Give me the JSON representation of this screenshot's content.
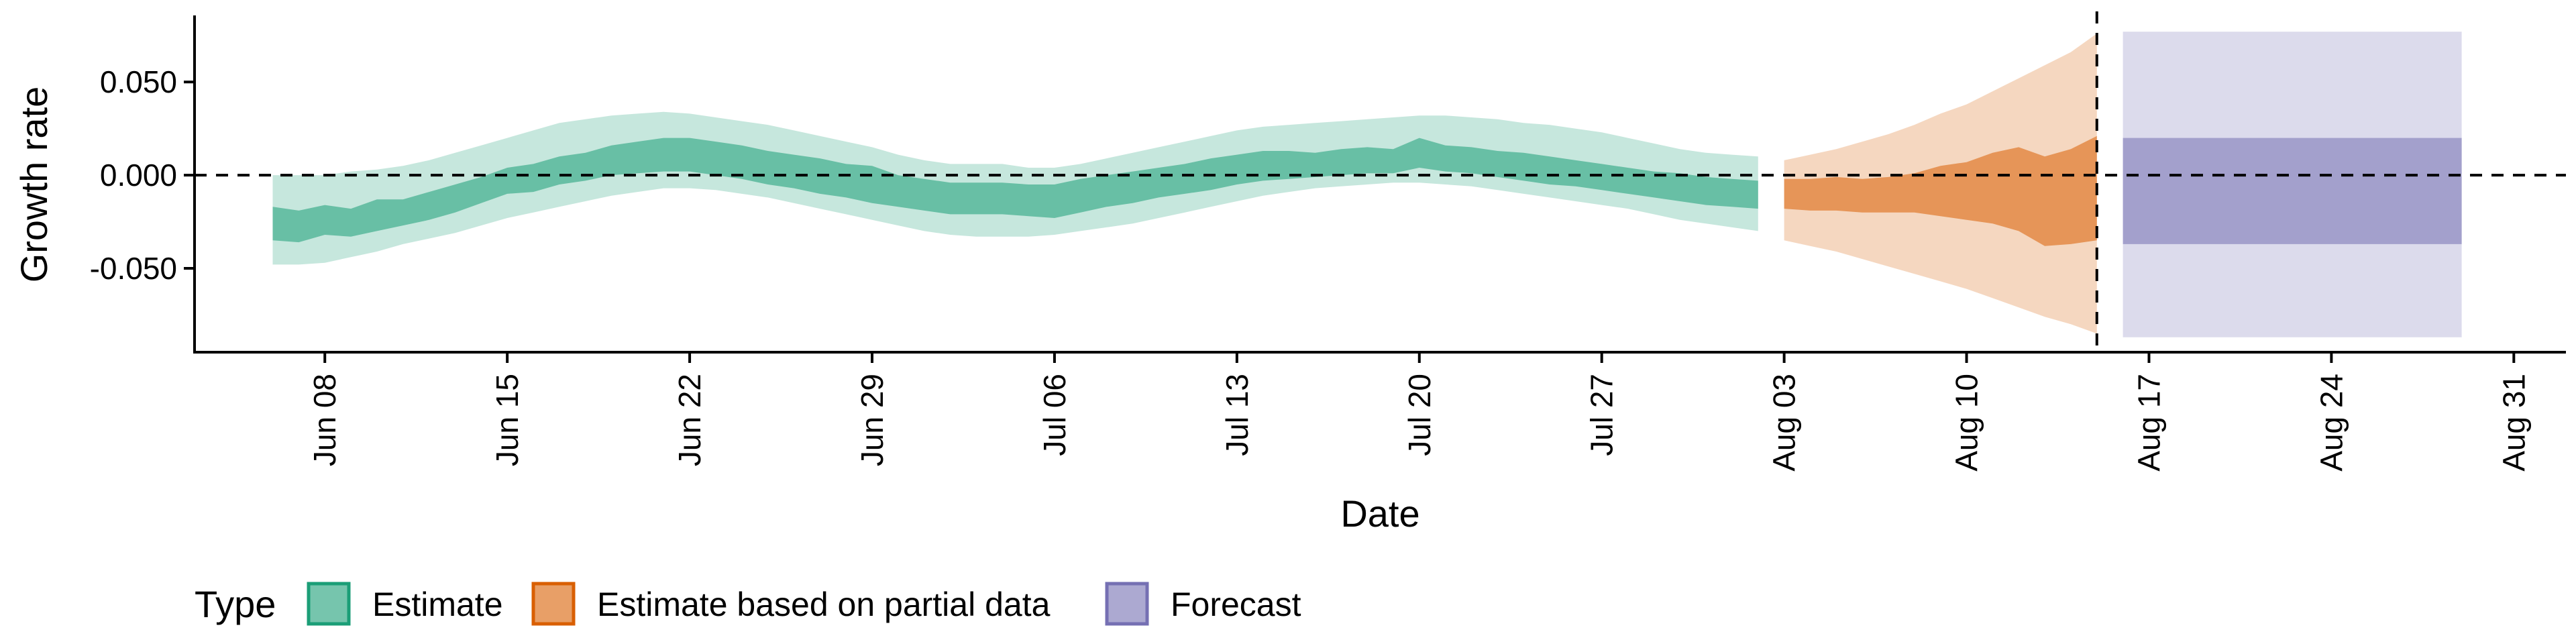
{
  "chart_data": {
    "type": "area",
    "xlabel": "Date",
    "ylabel": "Growth rate",
    "xlim": [
      "2020-06-03",
      "2020-09-02"
    ],
    "ylim": [
      -0.095,
      0.085
    ],
    "x_ticks": [
      "2020-06-08",
      "2020-06-15",
      "2020-06-22",
      "2020-06-29",
      "2020-07-06",
      "2020-07-13",
      "2020-07-20",
      "2020-07-27",
      "2020-08-03",
      "2020-08-10",
      "2020-08-17",
      "2020-08-24",
      "2020-08-31"
    ],
    "x_tick_labels": [
      "Jun 08",
      "Jun 15",
      "Jun 22",
      "Jun 29",
      "Jul 06",
      "Jul 13",
      "Jul 20",
      "Jul 27",
      "Aug 03",
      "Aug 10",
      "Aug 17",
      "Aug 24",
      "Aug 31"
    ],
    "y_ticks": [
      0.05,
      0.0,
      -0.05
    ],
    "y_tick_labels": [
      "0.050",
      "0.000",
      "-0.050"
    ],
    "reference_lines": {
      "horizontal_y": 0.0,
      "vertical_date": "2020-08-15"
    },
    "grid": false,
    "legend": {
      "title": "Type",
      "position": "bottom",
      "entries": [
        "Estimate",
        "Estimate based on partial data",
        "Forecast"
      ]
    },
    "colors": {
      "Estimate": "#1b9e77",
      "Estimate based on partial data": "#d95f02",
      "Forecast": "#7570b3"
    },
    "series": [
      {
        "name": "Estimate",
        "x": [
          "2020-06-06",
          "2020-06-07",
          "2020-06-08",
          "2020-06-09",
          "2020-06-10",
          "2020-06-11",
          "2020-06-12",
          "2020-06-13",
          "2020-06-14",
          "2020-06-15",
          "2020-06-16",
          "2020-06-17",
          "2020-06-18",
          "2020-06-19",
          "2020-06-20",
          "2020-06-21",
          "2020-06-22",
          "2020-06-23",
          "2020-06-24",
          "2020-06-25",
          "2020-06-26",
          "2020-06-27",
          "2020-06-28",
          "2020-06-29",
          "2020-06-30",
          "2020-07-01",
          "2020-07-02",
          "2020-07-03",
          "2020-07-04",
          "2020-07-05",
          "2020-07-06",
          "2020-07-07",
          "2020-07-08",
          "2020-07-09",
          "2020-07-10",
          "2020-07-11",
          "2020-07-12",
          "2020-07-13",
          "2020-07-14",
          "2020-07-15",
          "2020-07-16",
          "2020-07-17",
          "2020-07-18",
          "2020-07-19",
          "2020-07-20",
          "2020-07-21",
          "2020-07-22",
          "2020-07-23",
          "2020-07-24",
          "2020-07-25",
          "2020-07-26",
          "2020-07-27",
          "2020-07-28",
          "2020-07-29",
          "2020-07-30",
          "2020-07-31",
          "2020-08-01",
          "2020-08-02"
        ],
        "upper_90": [
          0.0,
          0.0,
          0.0,
          0.002,
          0.003,
          0.005,
          0.008,
          0.012,
          0.016,
          0.02,
          0.024,
          0.028,
          0.03,
          0.032,
          0.033,
          0.034,
          0.033,
          0.031,
          0.029,
          0.027,
          0.024,
          0.021,
          0.018,
          0.015,
          0.011,
          0.008,
          0.006,
          0.006,
          0.006,
          0.004,
          0.004,
          0.006,
          0.009,
          0.012,
          0.015,
          0.018,
          0.021,
          0.024,
          0.026,
          0.027,
          0.028,
          0.029,
          0.03,
          0.031,
          0.032,
          0.032,
          0.031,
          0.03,
          0.028,
          0.027,
          0.025,
          0.023,
          0.02,
          0.017,
          0.014,
          0.012,
          0.011,
          0.01
        ],
        "upper_50": [
          -0.017,
          -0.019,
          -0.016,
          -0.018,
          -0.013,
          -0.013,
          -0.009,
          -0.005,
          -0.001,
          0.004,
          0.006,
          0.01,
          0.012,
          0.016,
          0.018,
          0.02,
          0.02,
          0.018,
          0.016,
          0.013,
          0.011,
          0.009,
          0.006,
          0.005,
          0.0,
          -0.002,
          -0.004,
          -0.004,
          -0.004,
          -0.005,
          -0.005,
          -0.002,
          0.0,
          0.002,
          0.004,
          0.006,
          0.009,
          0.011,
          0.013,
          0.013,
          0.012,
          0.014,
          0.015,
          0.014,
          0.02,
          0.016,
          0.015,
          0.013,
          0.012,
          0.01,
          0.008,
          0.006,
          0.004,
          0.002,
          0.001,
          -0.001,
          -0.002,
          -0.003
        ],
        "lower_50": [
          -0.035,
          -0.036,
          -0.032,
          -0.033,
          -0.03,
          -0.027,
          -0.024,
          -0.02,
          -0.015,
          -0.01,
          -0.009,
          -0.005,
          -0.003,
          0.0,
          0.001,
          0.002,
          0.002,
          0.0,
          -0.002,
          -0.005,
          -0.007,
          -0.01,
          -0.012,
          -0.015,
          -0.017,
          -0.019,
          -0.021,
          -0.021,
          -0.021,
          -0.022,
          -0.023,
          -0.02,
          -0.017,
          -0.015,
          -0.012,
          -0.01,
          -0.008,
          -0.005,
          -0.003,
          -0.002,
          -0.001,
          0.0,
          0.001,
          0.001,
          0.004,
          0.002,
          0.001,
          -0.001,
          -0.003,
          -0.005,
          -0.006,
          -0.008,
          -0.01,
          -0.012,
          -0.014,
          -0.016,
          -0.017,
          -0.018
        ],
        "lower_90": [
          -0.048,
          -0.048,
          -0.047,
          -0.044,
          -0.041,
          -0.037,
          -0.034,
          -0.031,
          -0.027,
          -0.023,
          -0.02,
          -0.017,
          -0.014,
          -0.011,
          -0.009,
          -0.007,
          -0.007,
          -0.008,
          -0.01,
          -0.012,
          -0.015,
          -0.018,
          -0.021,
          -0.024,
          -0.027,
          -0.03,
          -0.032,
          -0.033,
          -0.033,
          -0.033,
          -0.032,
          -0.03,
          -0.028,
          -0.026,
          -0.023,
          -0.02,
          -0.017,
          -0.014,
          -0.011,
          -0.009,
          -0.007,
          -0.006,
          -0.005,
          -0.004,
          -0.004,
          -0.005,
          -0.006,
          -0.008,
          -0.01,
          -0.012,
          -0.014,
          -0.016,
          -0.018,
          -0.021,
          -0.024,
          -0.026,
          -0.028,
          -0.03
        ]
      },
      {
        "name": "Estimate based on partial data",
        "x": [
          "2020-08-03",
          "2020-08-04",
          "2020-08-05",
          "2020-08-06",
          "2020-08-07",
          "2020-08-08",
          "2020-08-09",
          "2020-08-10",
          "2020-08-11",
          "2020-08-12",
          "2020-08-13",
          "2020-08-14",
          "2020-08-15"
        ],
        "upper_90": [
          0.008,
          0.011,
          0.014,
          0.018,
          0.022,
          0.027,
          0.033,
          0.038,
          0.045,
          0.052,
          0.059,
          0.066,
          0.076
        ],
        "upper_50": [
          -0.002,
          -0.002,
          -0.001,
          -0.002,
          -0.001,
          0.001,
          0.005,
          0.007,
          0.012,
          0.015,
          0.01,
          0.014,
          0.021
        ],
        "lower_50": [
          -0.018,
          -0.019,
          -0.019,
          -0.02,
          -0.02,
          -0.02,
          -0.022,
          -0.024,
          -0.026,
          -0.03,
          -0.038,
          -0.037,
          -0.035
        ],
        "lower_90": [
          -0.035,
          -0.038,
          -0.041,
          -0.045,
          -0.049,
          -0.053,
          -0.057,
          -0.061,
          -0.066,
          -0.071,
          -0.076,
          -0.08,
          -0.085
        ]
      },
      {
        "name": "Forecast",
        "x": [
          "2020-08-16",
          "2020-08-29"
        ],
        "upper_90": [
          0.077,
          0.077
        ],
        "upper_50": [
          0.02,
          0.02
        ],
        "lower_50": [
          -0.037,
          -0.037
        ],
        "lower_90": [
          -0.087,
          -0.087
        ]
      }
    ]
  }
}
